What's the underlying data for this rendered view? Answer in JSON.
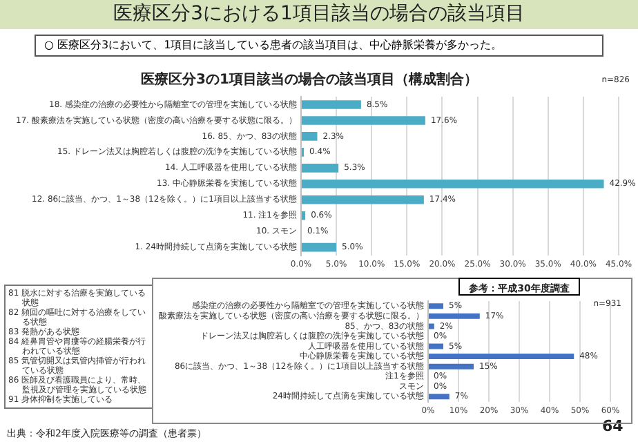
{
  "chart_data": [
    {
      "type": "other",
      "title": "医療区分3における1項目該当の場合の該当項目",
      "subtitle": "○ 医療区分3において、1項目に該当している患者の該当項目は、中心静脈栄養が多かった。",
      "annotations": [
        "81 脱水に対する治療を実施している状態",
        "82 頻回の嘔吐に対する治療をしている状態",
        "83 発熱がある状態",
        "84 経鼻胃管や胃瘻等の経腸栄養が行われている状態",
        "85 気管切開又は気管内挿管が行われている状態",
        "86 医師及び看護職員により、常時、監視及び管理を実施している状態",
        "91 身体抑制を実施している",
        "出典：令和2年度入院医療等の調査（患者票）",
        "64"
      ]
    },
    {
      "type": "bar",
      "orientation": "horizontal",
      "title": "医療区分3の1項目該当の場合の該当項目（構成割合）",
      "annotations": [
        "n=826"
      ],
      "categories": [
        "18. 感染症の治療の必要性から隔離室での管理を実施している状態",
        "17. 酸素療法を実施している状態（密度の高い治療を要する状態に限る。）",
        "16. 85、かつ、83の状態",
        "15. ドレーン法又は胸腔若しくは腹腔の洗浄を実施している状態",
        "14. 人工呼吸器を使用している状態",
        "13. 中心静脈栄養を実施している状態",
        "12. 86に該当、かつ、1～38（12を除く。）に1項目以上該当する状態",
        "11. 注1を参照",
        "10. スモン",
        "1. 24時間持続して点滴を実施している状態"
      ],
      "values": [
        8.5,
        17.6,
        2.3,
        0.4,
        5.3,
        42.9,
        17.4,
        0.6,
        0.1,
        5.0
      ],
      "value_labels": [
        "8.5%",
        "17.6%",
        "2.3%",
        "0.4%",
        "5.3%",
        "42.9%",
        "17.4%",
        "0.6%",
        "0.1%",
        "5.0%"
      ],
      "color": "#4bacc6",
      "xlim": [
        0,
        45
      ],
      "xticks": [
        {
          "value": 0,
          "label": "0.0%"
        },
        {
          "value": 5,
          "label": "5.0%"
        },
        {
          "value": 10,
          "label": "10.0%"
        },
        {
          "value": 15,
          "label": "15.0%"
        },
        {
          "value": 20,
          "label": "20.0%"
        },
        {
          "value": 25,
          "label": "25.0%"
        },
        {
          "value": 30,
          "label": "30.0%"
        },
        {
          "value": 35,
          "label": "35.0%"
        },
        {
          "value": 40,
          "label": "40.0%"
        },
        {
          "value": 45,
          "label": "45.0%"
        }
      ],
      "grid": "x",
      "legend": false
    },
    {
      "type": "bar",
      "orientation": "horizontal",
      "title": "参考：平成30年度調査",
      "annotations": [
        "n=931"
      ],
      "categories": [
        "感染症の治療の必要性から隔離室での管理を実施している状態",
        "酸素療法を実施している状態（密度の高い治療を要する状態に限る。）",
        "85、かつ、83の状態",
        "ドレーン法又は胸腔若しくは腹腔の洗浄を実施している状態",
        "人工呼吸器を使用している状態",
        "中心静脈栄養を実施している状態",
        "86に該当、かつ、1～38（12を除く。）に1項目以上該当する状態",
        "注1を参照",
        "スモン",
        "24時間持続して点滴を実施している状態"
      ],
      "values": [
        5,
        17,
        2,
        0,
        5,
        48,
        15,
        0,
        0,
        7
      ],
      "value_labels": [
        "5%",
        "17%",
        "2%",
        "0%",
        "5%",
        "48%",
        "15%",
        "0%",
        "0%",
        "7%"
      ],
      "color": "#4472c4",
      "xlim": [
        0,
        60
      ],
      "xticks": [
        {
          "value": 0,
          "label": "0%"
        },
        {
          "value": 10,
          "label": "10%"
        },
        {
          "value": 20,
          "label": "20%"
        },
        {
          "value": 30,
          "label": "30%"
        },
        {
          "value": 40,
          "label": "40%"
        },
        {
          "value": 50,
          "label": "50%"
        },
        {
          "value": 60,
          "label": "60%"
        }
      ],
      "grid": "x",
      "legend": false
    }
  ]
}
